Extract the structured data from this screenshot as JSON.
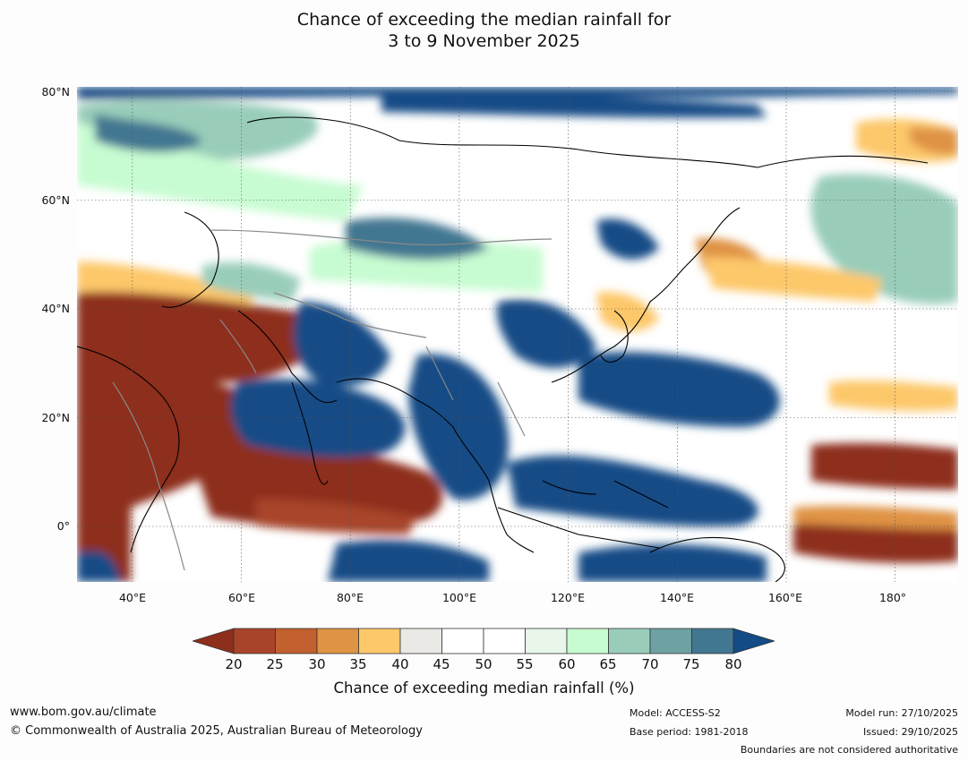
{
  "title": {
    "line1": "Chance of exceeding the median rainfall for",
    "line2": "3 to 9 November 2025"
  },
  "map": {
    "lat_labels": [
      "80°N",
      "60°N",
      "40°N",
      "20°N",
      "0°"
    ],
    "lon_labels": [
      "40°E",
      "60°E",
      "80°E",
      "100°E",
      "120°E",
      "140°E",
      "160°E",
      "180°"
    ],
    "extent": {
      "lon": [
        30,
        191
      ],
      "lat": [
        -10,
        81
      ]
    },
    "palette": {
      "lt20": "#8e2f1c",
      "20-25": "#a8442a",
      "25-30": "#c2602f",
      "30-35": "#df9344",
      "35-40": "#fdc86a",
      "40-45": "#ebe9e6",
      "45-55": "#ffffff",
      "55-60": "#e9f7ea",
      "60-65": "#c7fcd1",
      "65-70": "#99cdba",
      "70-75": "#6ea2a2",
      "75-80": "#427791",
      "gt80": "#124b86"
    }
  },
  "colorbar": {
    "ticks": [
      "20",
      "25",
      "30",
      "35",
      "40",
      "45",
      "50",
      "55",
      "60",
      "65",
      "70",
      "75",
      "80"
    ],
    "colors": [
      "#a8442a",
      "#c2602f",
      "#df9344",
      "#fdc86a",
      "#ebe9e6",
      "#ffffff",
      "#ffffff",
      "#e9f7ea",
      "#c7fcd1",
      "#99cdba",
      "#6ea2a2",
      "#427791"
    ],
    "low_color": "#8e2f1c",
    "high_color": "#124b86",
    "label": "Chance of exceeding median rainfall (%)"
  },
  "footer": {
    "url": "www.bom.gov.au/climate",
    "copyright": "© Commonwealth of Australia 2025, Australian Bureau of Meteorology",
    "model": "Model: ACCESS-S2",
    "base_period": "Base period: 1981-2018",
    "model_run": "Model run: 27/10/2025",
    "issued": "Issued: 29/10/2025",
    "disclaimer": "Boundaries are not considered authoritative"
  }
}
